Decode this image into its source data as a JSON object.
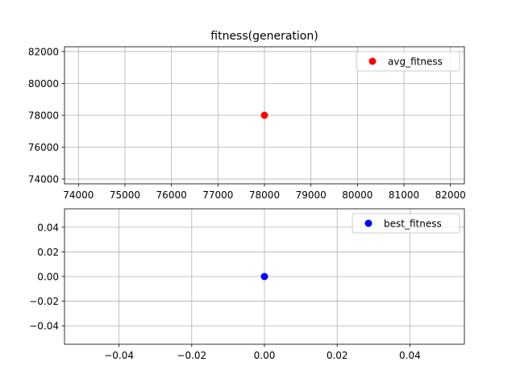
{
  "chart_data": [
    {
      "type": "scatter",
      "title": "fitness(generation)",
      "xlabel": "",
      "ylabel": "",
      "grid": true,
      "legend_position": "top-right",
      "xlim": [
        73700,
        82300
      ],
      "ylim": [
        73700,
        82300
      ],
      "xticks": [
        74000,
        75000,
        76000,
        77000,
        78000,
        79000,
        80000,
        81000,
        82000
      ],
      "yticks": [
        74000,
        76000,
        78000,
        80000,
        82000
      ],
      "xtick_labels": [
        "74000",
        "75000",
        "76000",
        "77000",
        "78000",
        "79000",
        "80000",
        "81000",
        "82000"
      ],
      "ytick_labels": [
        "74000",
        "76000",
        "78000",
        "80000",
        "82000"
      ],
      "series": [
        {
          "name": "avg_fitness",
          "color": "#ff0000",
          "points": [
            {
              "x": 78000,
              "y": 78000
            }
          ]
        }
      ]
    },
    {
      "type": "scatter",
      "title": "",
      "xlabel": "",
      "ylabel": "",
      "grid": true,
      "legend_position": "top-right",
      "xlim": [
        -0.055,
        0.055
      ],
      "ylim": [
        -0.055,
        0.055
      ],
      "xticks": [
        -0.04,
        -0.02,
        0.0,
        0.02,
        0.04
      ],
      "yticks": [
        -0.04,
        -0.02,
        0.0,
        0.02,
        0.04
      ],
      "xtick_labels": [
        "−0.04",
        "−0.02",
        "0.00",
        "0.02",
        "0.04"
      ],
      "ytick_labels": [
        "−0.04",
        "−0.02",
        "0.00",
        "0.02",
        "0.04"
      ],
      "series": [
        {
          "name": "best_fitness",
          "color": "#0000ff",
          "points": [
            {
              "x": 0,
              "y": 0
            }
          ]
        }
      ]
    }
  ]
}
